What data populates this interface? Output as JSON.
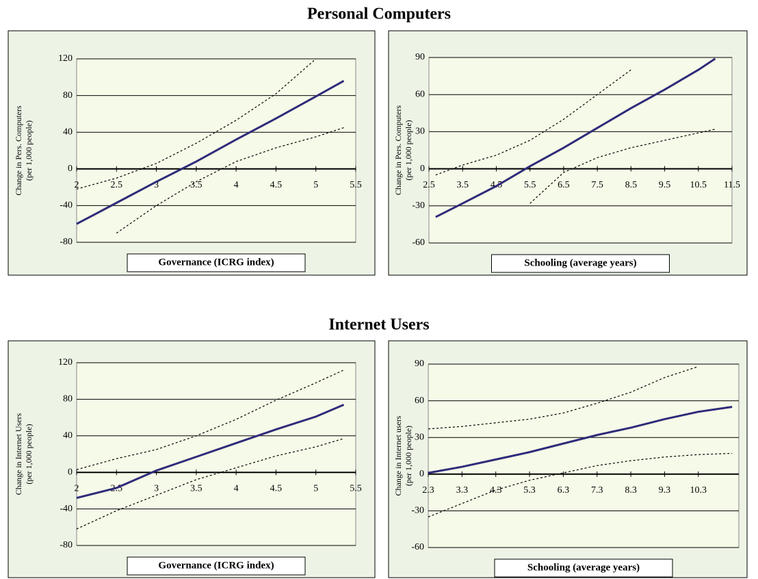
{
  "sections": [
    "Personal Computers",
    "Internet Users"
  ],
  "chart_data": [
    {
      "type": "line",
      "xlabel": "Governance (ICRG index)",
      "ylabel": [
        "Change in Pers. Computers",
        "(per 1,000 people)"
      ],
      "x": [
        2,
        2.5,
        3,
        3.5,
        4,
        4.5,
        5,
        5.35
      ],
      "xlim": [
        2,
        5.5
      ],
      "xticks": [
        2,
        2.5,
        3,
        3.5,
        4,
        4.5,
        5,
        5.5
      ],
      "ylim": [
        -80,
        120
      ],
      "yticks": [
        -80,
        -40,
        0,
        40,
        80,
        120
      ],
      "grid": true,
      "series": [
        {
          "color": "#2e2b7a",
          "line_style": "solid",
          "values": [
            -60,
            -37,
            -14,
            8,
            32,
            55,
            79,
            96
          ]
        },
        {
          "color": "#000000",
          "line_style": "dotted",
          "values": [
            -22,
            -10,
            6,
            28,
            53,
            82,
            120,
            null
          ]
        },
        {
          "color": "#000000",
          "line_style": "dotted",
          "values": [
            null,
            -70,
            -40,
            -14,
            8,
            23,
            35,
            45
          ]
        }
      ]
    },
    {
      "type": "line",
      "xlabel": "Schooling (average years)",
      "ylabel": [
        "Change in Pers. Computers",
        "(per 1,000 people)"
      ],
      "x": [
        2.7,
        3.5,
        4.5,
        5.5,
        6.5,
        7.5,
        8.5,
        9.5,
        10.5,
        11
      ],
      "xlim": [
        2.5,
        11.5
      ],
      "xticks": [
        2.5,
        3.5,
        4.5,
        5.5,
        6.5,
        7.5,
        8.5,
        9.5,
        10.5,
        11.5
      ],
      "ylim": [
        -60,
        90
      ],
      "yticks": [
        -60,
        -30,
        0,
        30,
        60,
        90
      ],
      "grid": true,
      "series": [
        {
          "color": "#2e2b7a",
          "line_style": "solid",
          "values": [
            -39,
            -28,
            -14,
            2,
            17,
            33,
            49,
            64,
            80,
            89
          ]
        },
        {
          "color": "#000000",
          "line_style": "dotted",
          "values": [
            -5,
            3,
            11,
            23,
            40,
            60,
            80,
            null,
            null,
            null
          ]
        },
        {
          "color": "#000000",
          "line_style": "dotted",
          "values": [
            null,
            null,
            null,
            -28,
            -3,
            9,
            17,
            23,
            29,
            32
          ]
        }
      ]
    },
    {
      "type": "line",
      "xlabel": "Governance (ICRG index)",
      "ylabel": [
        "Change in Internet Users",
        "(per 1,000 people)"
      ],
      "x": [
        2,
        2.5,
        3,
        3.5,
        4,
        4.5,
        5,
        5.35
      ],
      "xlim": [
        2,
        5.5
      ],
      "xticks": [
        2,
        2.5,
        3,
        3.5,
        4,
        4.5,
        5,
        5.5
      ],
      "ylim": [
        -80,
        120
      ],
      "yticks": [
        -80,
        -40,
        0,
        40,
        80,
        120
      ],
      "grid": true,
      "series": [
        {
          "color": "#2e2b7a",
          "line_style": "solid",
          "values": [
            -28,
            -17,
            2,
            17,
            32,
            47,
            61,
            74
          ]
        },
        {
          "color": "#000000",
          "line_style": "dotted",
          "values": [
            3,
            15,
            25,
            40,
            58,
            79,
            98,
            112
          ]
        },
        {
          "color": "#000000",
          "line_style": "dotted",
          "values": [
            -62,
            -42,
            -25,
            -8,
            5,
            18,
            28,
            37
          ]
        }
      ]
    },
    {
      "type": "line",
      "xlabel": "Schooling (average years)",
      "ylabel": [
        "Change in Internet users",
        "(per 1,000 people)"
      ],
      "x": [
        2.3,
        3.3,
        4.3,
        5.3,
        6.3,
        7.3,
        8.3,
        9.3,
        10.3,
        11.3
      ],
      "xlim": [
        2.3,
        11.5
      ],
      "xticks": [
        2.3,
        3.3,
        4.3,
        5.3,
        6.3,
        7.3,
        8.3,
        9.3,
        10.3
      ],
      "ylim": [
        -60,
        90
      ],
      "yticks": [
        -60,
        -30,
        0,
        30,
        60,
        90
      ],
      "grid": true,
      "series": [
        {
          "color": "#2e2b7a",
          "line_style": "solid",
          "values": [
            1,
            6,
            12,
            18,
            25,
            32,
            38,
            45,
            51,
            55
          ]
        },
        {
          "color": "#000000",
          "line_style": "dotted",
          "values": [
            37,
            39,
            42,
            45,
            50,
            58,
            67,
            79,
            88,
            null
          ]
        },
        {
          "color": "#000000",
          "line_style": "dotted",
          "values": [
            -35,
            -24,
            -13,
            -5,
            1,
            7,
            11,
            14,
            16,
            17
          ]
        }
      ]
    }
  ]
}
